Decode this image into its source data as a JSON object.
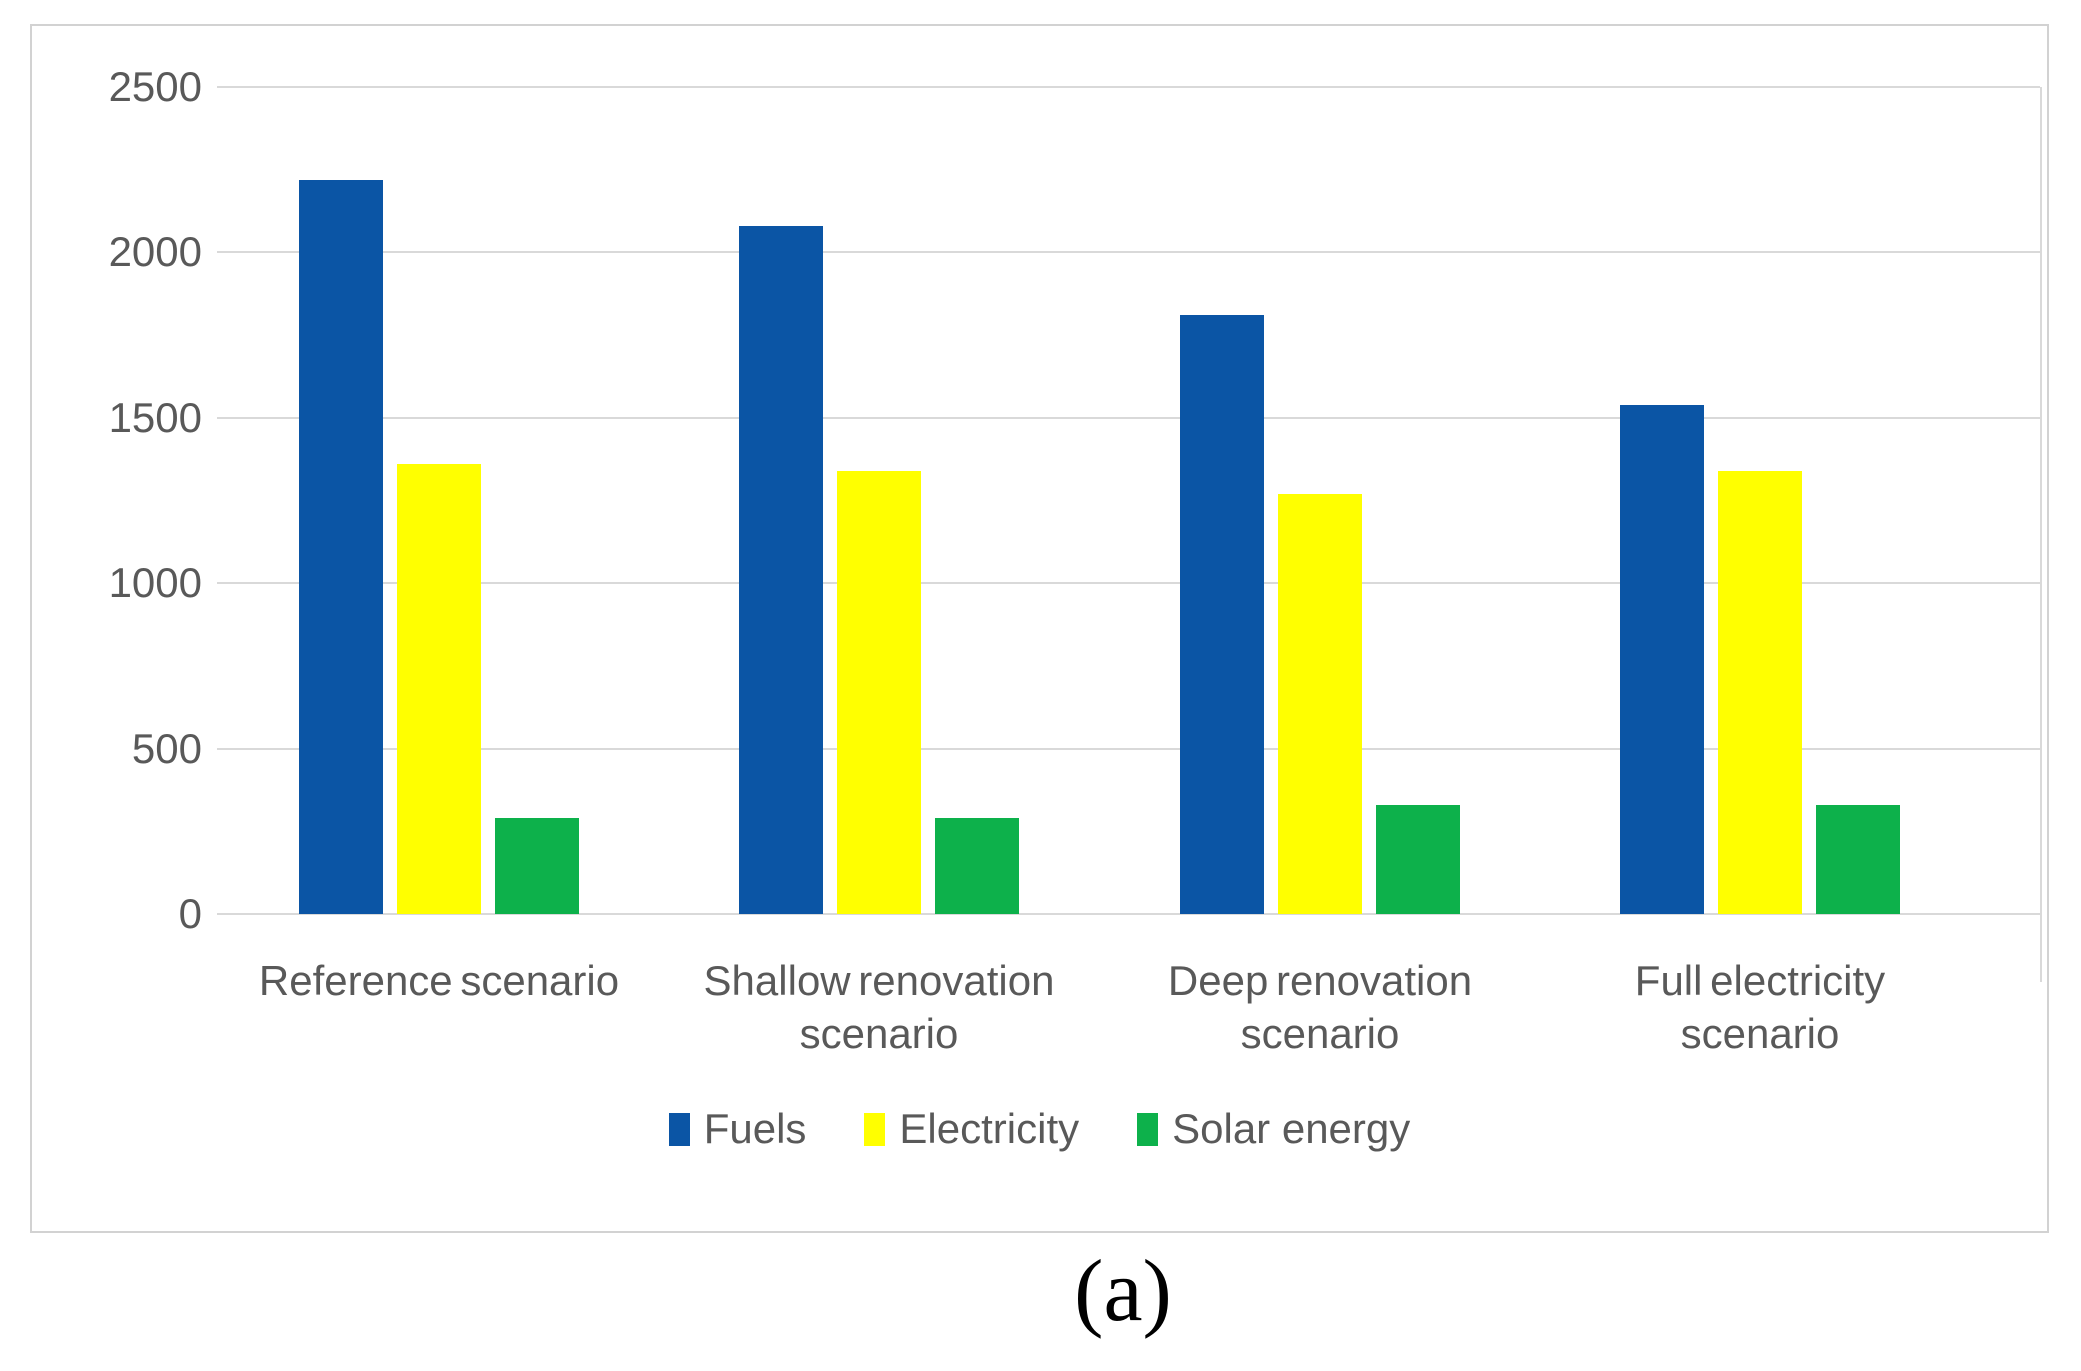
{
  "figure_label": "(a)",
  "chart_data": {
    "type": "bar",
    "title": "",
    "xlabel": "",
    "ylabel": "",
    "categories": [
      "Reference scenario",
      "Shallow renovation scenario",
      "Deep renovation scenario",
      "Full electricity scenario"
    ],
    "category_label_lines": [
      [
        "Reference scenario"
      ],
      [
        "Shallow renovation",
        "scenario"
      ],
      [
        "Deep renovation",
        "scenario"
      ],
      [
        "Full electricity",
        "scenario"
      ]
    ],
    "series": [
      {
        "name": "Fuels",
        "color": "#0b55a5",
        "values": [
          2220,
          2080,
          1810,
          1540
        ]
      },
      {
        "name": "Electricity",
        "color": "#ffff00",
        "values": [
          1360,
          1340,
          1270,
          1340
        ]
      },
      {
        "name": "Solar energy",
        "color": "#0db14b",
        "values": [
          290,
          290,
          330,
          330
        ]
      }
    ],
    "ylim": [
      0,
      2500
    ],
    "yticks": [
      0,
      500,
      1000,
      1500,
      2000,
      2500
    ],
    "grid": true,
    "gridline_color": "#d9d9d9",
    "tick_label_color": "#595959",
    "legend_position": "bottom",
    "legend_labels": [
      "Fuels",
      "Electricity",
      "Solar energy"
    ]
  }
}
